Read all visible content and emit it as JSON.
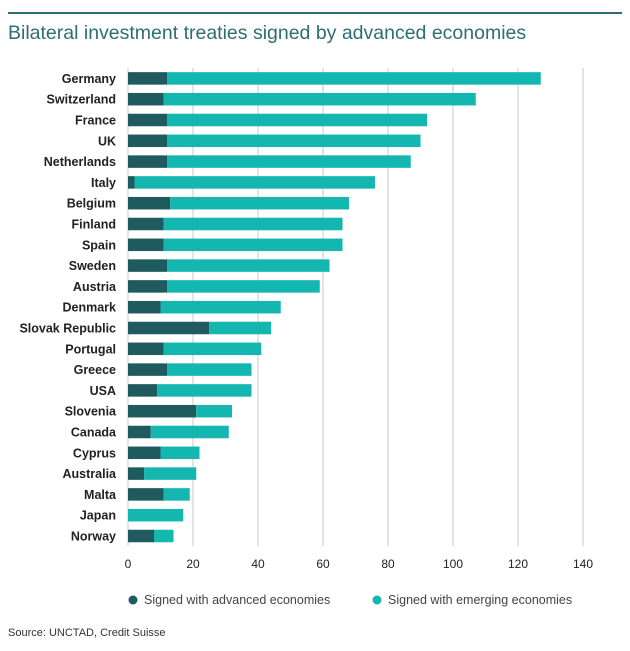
{
  "colors": {
    "advanced": "#1f5a5e",
    "emerging": "#14b6b0",
    "accent": "#2d6e73"
  },
  "chart_data": {
    "type": "bar",
    "orientation": "horizontal",
    "stacked": true,
    "title": "Bilateral investment treaties signed by advanced economies",
    "categories": [
      "Germany",
      "Switzerland",
      "France",
      "UK",
      "Netherlands",
      "Italy",
      "Belgium",
      "Finland",
      "Spain",
      "Sweden",
      "Austria",
      "Denmark",
      "Slovak Republic",
      "Portugal",
      "Greece",
      "USA",
      "Slovenia",
      "Canada",
      "Cyprus",
      "Australia",
      "Malta",
      "Japan",
      "Norway"
    ],
    "series": [
      {
        "name": "Signed with advanced economies",
        "values": [
          12,
          11,
          12,
          12,
          12,
          2,
          13,
          11,
          11,
          12,
          12,
          10,
          25,
          11,
          12,
          9,
          21,
          7,
          10,
          5,
          11,
          0,
          8
        ]
      },
      {
        "name": "Signed with emerging economies",
        "values": [
          115,
          96,
          80,
          78,
          75,
          74,
          55,
          55,
          55,
          50,
          47,
          37,
          19,
          30,
          26,
          29,
          11,
          24,
          12,
          16,
          8,
          17,
          6
        ]
      }
    ],
    "xlim": [
      0,
      140
    ],
    "xticks": [
      0,
      20,
      40,
      60,
      80,
      100,
      120,
      140
    ],
    "grid": "vertical",
    "legend": "bottom",
    "source": "Source: UNCTAD, Credit Suisse"
  }
}
